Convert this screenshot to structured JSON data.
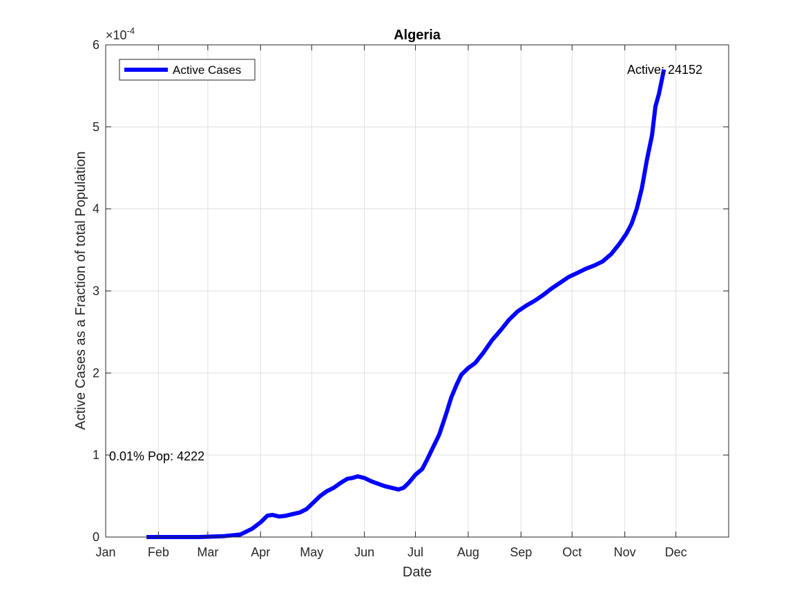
{
  "chart_data": {
    "type": "line",
    "title": "Algeria",
    "xlabel": "Date",
    "ylabel": "Active Cases as a Fraction of total Population",
    "y_exponent_label": "×10",
    "y_exponent_power": "-4",
    "x_tick_labels": [
      "Jan",
      "Feb",
      "Mar",
      "Apr",
      "May",
      "Jun",
      "Jul",
      "Aug",
      "Sep",
      "Oct",
      "Nov",
      "Dec"
    ],
    "x_tick_dates": [
      "2020-01-01",
      "2020-02-01",
      "2020-03-01",
      "2020-04-01",
      "2020-05-01",
      "2020-06-01",
      "2020-07-01",
      "2020-08-01",
      "2020-09-01",
      "2020-10-01",
      "2020-11-01",
      "2020-12-01"
    ],
    "y_tick_labels": [
      "0",
      "1",
      "2",
      "3",
      "4",
      "5",
      "6"
    ],
    "y_tick_values": [
      0,
      1,
      2,
      3,
      4,
      5,
      6
    ],
    "xlim": [
      "2020-01-01",
      "2021-01-01"
    ],
    "ylim": [
      0,
      6
    ],
    "grid": true,
    "legend_position": "top-left",
    "series": [
      {
        "name": "Active Cases",
        "color": "#0000ff",
        "points": [
          [
            "2020-01-25",
            0
          ],
          [
            "2020-02-10",
            0
          ],
          [
            "2020-02-25",
            0
          ],
          [
            "2020-03-10",
            0.01
          ],
          [
            "2020-03-20",
            0.03
          ],
          [
            "2020-03-27",
            0.1
          ],
          [
            "2020-04-01",
            0.18
          ],
          [
            "2020-04-05",
            0.26
          ],
          [
            "2020-04-08",
            0.27
          ],
          [
            "2020-04-12",
            0.25
          ],
          [
            "2020-04-16",
            0.26
          ],
          [
            "2020-04-20",
            0.28
          ],
          [
            "2020-04-24",
            0.3
          ],
          [
            "2020-04-28",
            0.34
          ],
          [
            "2020-05-02",
            0.42
          ],
          [
            "2020-05-06",
            0.5
          ],
          [
            "2020-05-10",
            0.56
          ],
          [
            "2020-05-14",
            0.6
          ],
          [
            "2020-05-18",
            0.66
          ],
          [
            "2020-05-22",
            0.71
          ],
          [
            "2020-05-25",
            0.72
          ],
          [
            "2020-05-28",
            0.74
          ],
          [
            "2020-06-01",
            0.72
          ],
          [
            "2020-06-05",
            0.68
          ],
          [
            "2020-06-09",
            0.65
          ],
          [
            "2020-06-13",
            0.62
          ],
          [
            "2020-06-17",
            0.6
          ],
          [
            "2020-06-21",
            0.58
          ],
          [
            "2020-06-24",
            0.6
          ],
          [
            "2020-06-27",
            0.66
          ],
          [
            "2020-07-01",
            0.76
          ],
          [
            "2020-07-05",
            0.83
          ],
          [
            "2020-07-08",
            0.95
          ],
          [
            "2020-07-11",
            1.08
          ],
          [
            "2020-07-15",
            1.25
          ],
          [
            "2020-07-19",
            1.5
          ],
          [
            "2020-07-22",
            1.7
          ],
          [
            "2020-07-25",
            1.85
          ],
          [
            "2020-07-28",
            1.98
          ],
          [
            "2020-08-01",
            2.06
          ],
          [
            "2020-08-05",
            2.12
          ],
          [
            "2020-08-10",
            2.25
          ],
          [
            "2020-08-15",
            2.4
          ],
          [
            "2020-08-20",
            2.52
          ],
          [
            "2020-08-25",
            2.65
          ],
          [
            "2020-08-30",
            2.75
          ],
          [
            "2020-09-04",
            2.82
          ],
          [
            "2020-09-09",
            2.88
          ],
          [
            "2020-09-14",
            2.95
          ],
          [
            "2020-09-19",
            3.03
          ],
          [
            "2020-09-24",
            3.1
          ],
          [
            "2020-09-29",
            3.17
          ],
          [
            "2020-10-04",
            3.22
          ],
          [
            "2020-10-09",
            3.27
          ],
          [
            "2020-10-14",
            3.31
          ],
          [
            "2020-10-19",
            3.36
          ],
          [
            "2020-10-24",
            3.45
          ],
          [
            "2020-10-29",
            3.58
          ],
          [
            "2020-11-02",
            3.7
          ],
          [
            "2020-11-05",
            3.82
          ],
          [
            "2020-11-08",
            4.0
          ],
          [
            "2020-11-11",
            4.25
          ],
          [
            "2020-11-14",
            4.6
          ],
          [
            "2020-11-17",
            4.9
          ],
          [
            "2020-11-19",
            5.25
          ],
          [
            "2020-11-21",
            5.4
          ],
          [
            "2020-11-23",
            5.6
          ],
          [
            "2020-11-24",
            5.7
          ]
        ]
      }
    ],
    "annotations": [
      {
        "text": "Active: 24152",
        "x": "2020-11-24",
        "y": 5.7
      },
      {
        "text": "0.01% Pop: 4222",
        "x": "2020-01-01",
        "y": 1.0
      }
    ]
  }
}
